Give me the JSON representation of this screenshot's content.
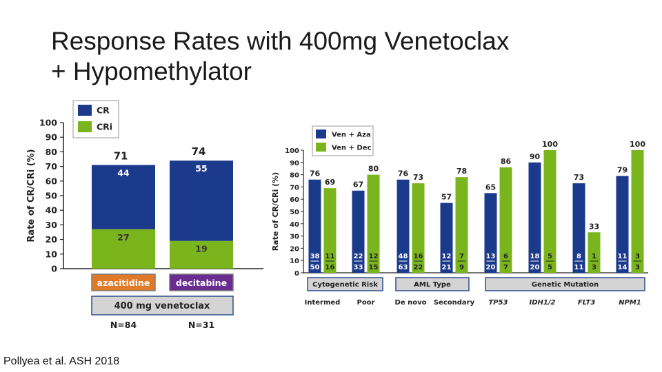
{
  "slide": {
    "title_line1": "Response Rates with 400mg Venetoclax",
    "title_line2": "+ Hypomethylator",
    "citation": "Pollyea et al. ASH 2018"
  },
  "colors": {
    "cr": "#1b3a8c",
    "cri": "#7ab51d",
    "aza": "#e07a28",
    "dec": "#6a2c91",
    "box": "#d4d4d4"
  },
  "chart_data": [
    {
      "type": "bar",
      "stacked": true,
      "ylabel": "Rate of CR/CRi (%)",
      "ylim": [
        0,
        100
      ],
      "yticks": [
        0,
        10,
        20,
        30,
        40,
        50,
        60,
        70,
        80,
        90,
        100
      ],
      "legend": [
        "CR",
        "CRi"
      ],
      "legend_position": "top",
      "categories": [
        "azacitidine",
        "decitabine"
      ],
      "series": [
        {
          "name": "CR",
          "values": [
            44,
            55
          ]
        },
        {
          "name": "CRi",
          "values": [
            27,
            19
          ]
        }
      ],
      "totals": [
        71,
        74
      ],
      "group_label": "400 mg venetoclax",
      "n_labels": [
        "N=84",
        "N=31"
      ]
    },
    {
      "type": "bar",
      "ylabel": "Rate of CR/CRi (%)",
      "ylim": [
        0,
        100
      ],
      "yticks": [
        0,
        10,
        20,
        30,
        40,
        50,
        60,
        70,
        80,
        90,
        100
      ],
      "legend_position": "top-left",
      "categories": [
        "Intermed",
        "Poor",
        "De novo",
        "Secondary",
        "TP53",
        "IDH1/2",
        "FLT3",
        "NPM1"
      ],
      "series": [
        {
          "name": "Ven + Aza",
          "values": [
            76,
            67,
            76,
            57,
            65,
            90,
            73,
            79
          ],
          "fractions": [
            [
              "38",
              "50"
            ],
            [
              "22",
              "33"
            ],
            [
              "48",
              "63"
            ],
            [
              "12",
              "21"
            ],
            [
              "13",
              "20"
            ],
            [
              "18",
              "20"
            ],
            [
              "8",
              "11"
            ],
            [
              "11",
              "14"
            ]
          ]
        },
        {
          "name": "Ven + Dec",
          "values": [
            69,
            80,
            73,
            78,
            86,
            100,
            33,
            100
          ],
          "fractions": [
            [
              "11",
              "16"
            ],
            [
              "12",
              "15"
            ],
            [
              "16",
              "22"
            ],
            [
              "7",
              "9"
            ],
            [
              "6",
              "7"
            ],
            [
              "5",
              "5"
            ],
            [
              "1",
              "3"
            ],
            [
              "3",
              "3"
            ]
          ]
        }
      ],
      "groups": [
        {
          "label": "Cytogenetic  Risk",
          "categories": [
            0,
            1
          ]
        },
        {
          "label": "AML Type",
          "categories": [
            2,
            3
          ]
        },
        {
          "label": "Genetic Mutation",
          "categories": [
            4,
            5,
            6,
            7
          ]
        }
      ],
      "italic_categories": [
        "TP53",
        "IDH1/2",
        "FLT3",
        "NPM1"
      ]
    }
  ]
}
